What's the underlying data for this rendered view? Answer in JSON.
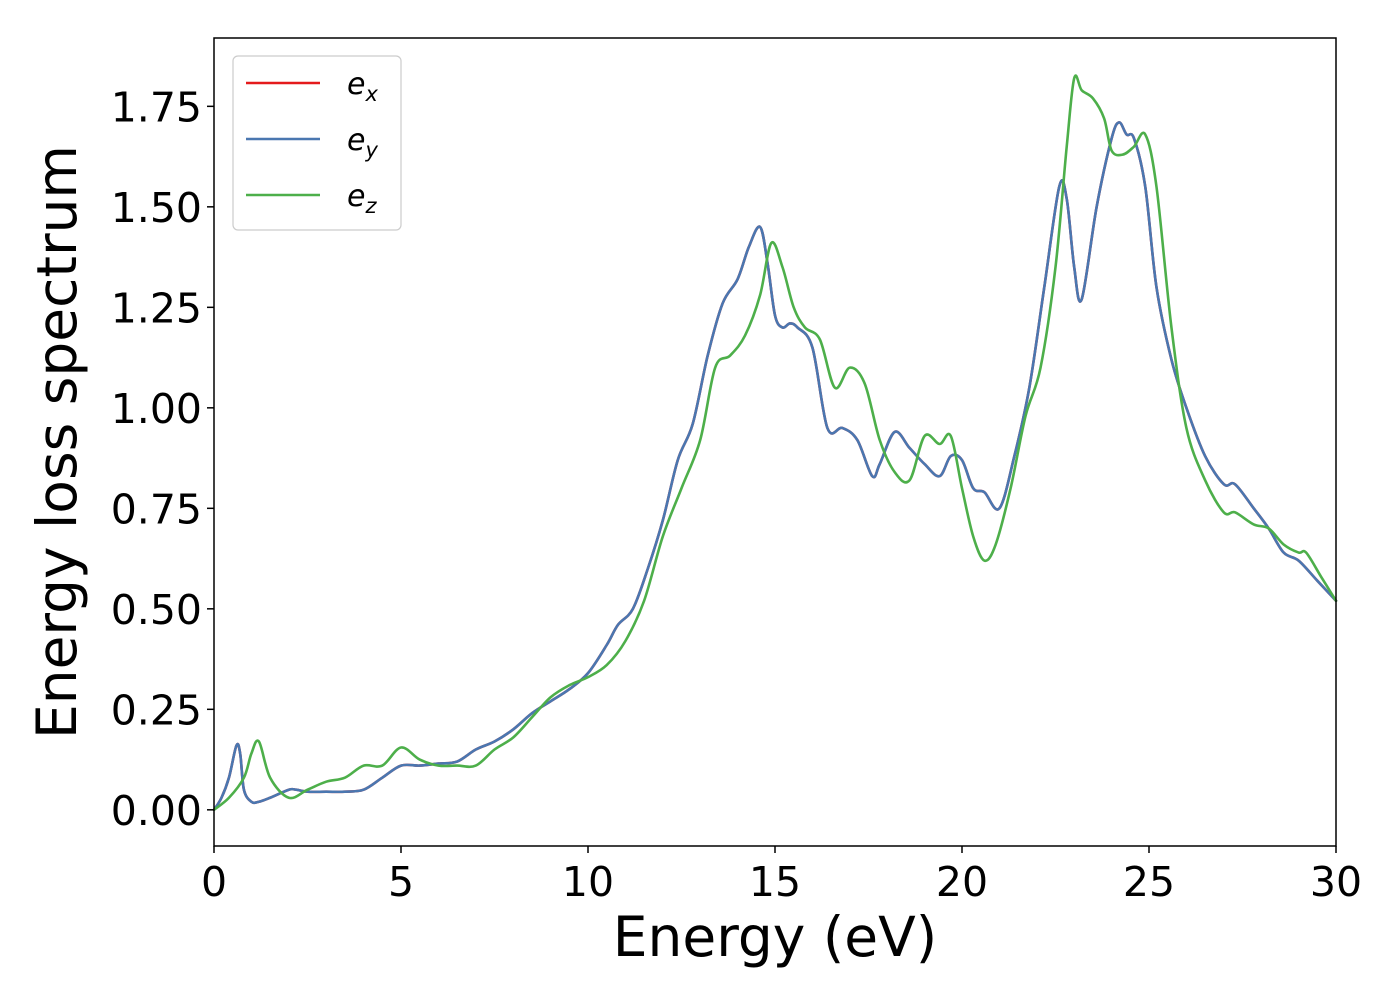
{
  "chart_data": {
    "type": "line",
    "title": "",
    "xlabel": "Energy (eV)",
    "ylabel": "Energy loss spectrum",
    "xlim": [
      0,
      30
    ],
    "ylim": [
      -0.09,
      1.92
    ],
    "xticks": [
      0,
      5,
      10,
      15,
      20,
      25,
      30
    ],
    "xtick_labels": [
      "0",
      "5",
      "10",
      "15",
      "20",
      "25",
      "30"
    ],
    "yticks": [
      0.0,
      0.25,
      0.5,
      0.75,
      1.0,
      1.25,
      1.5,
      1.75
    ],
    "ytick_labels": [
      "0.00",
      "0.25",
      "0.50",
      "0.75",
      "1.00",
      "1.25",
      "1.50",
      "1.75"
    ],
    "grid": false,
    "legend": {
      "position": "upper-left",
      "entries": [
        {
          "base": "e",
          "sub": "x",
          "color": "#e41a1c"
        },
        {
          "base": "e",
          "sub": "y",
          "color": "#4a77b0"
        },
        {
          "base": "e",
          "sub": "z",
          "color": "#4daf4a"
        }
      ]
    },
    "series": [
      {
        "name": "e_x",
        "color": "#e41a1c",
        "x": [
          0,
          0.2,
          0.4,
          0.6,
          0.7,
          0.8,
          1.0,
          1.2,
          1.5,
          2.0,
          2.2,
          2.5,
          3.0,
          3.5,
          4.0,
          4.5,
          5.0,
          5.5,
          6.0,
          6.5,
          7.0,
          7.5,
          8.0,
          8.5,
          9.0,
          9.5,
          10.0,
          10.5,
          10.8,
          11.2,
          11.6,
          12.0,
          12.4,
          12.8,
          13.2,
          13.6,
          14.0,
          14.3,
          14.6,
          14.8,
          15.0,
          15.2,
          15.4,
          15.6,
          16.0,
          16.4,
          16.8,
          17.2,
          17.6,
          17.8,
          18.2,
          18.6,
          19.0,
          19.4,
          19.7,
          20.0,
          20.3,
          20.6,
          21.0,
          21.4,
          21.8,
          22.2,
          22.6,
          22.8,
          23.0,
          23.2,
          23.6,
          24.0,
          24.2,
          24.4,
          24.6,
          24.9,
          25.2,
          25.6,
          26.0,
          26.5,
          27.0,
          27.3,
          27.8,
          28.2,
          28.6,
          29.0,
          29.5,
          30.0
        ],
        "y": [
          0.0,
          0.03,
          0.08,
          0.16,
          0.14,
          0.05,
          0.02,
          0.02,
          0.03,
          0.05,
          0.05,
          0.045,
          0.045,
          0.045,
          0.05,
          0.08,
          0.11,
          0.11,
          0.115,
          0.12,
          0.15,
          0.17,
          0.2,
          0.24,
          0.27,
          0.3,
          0.34,
          0.41,
          0.46,
          0.5,
          0.6,
          0.72,
          0.87,
          0.96,
          1.13,
          1.26,
          1.32,
          1.4,
          1.45,
          1.36,
          1.23,
          1.2,
          1.21,
          1.2,
          1.15,
          0.95,
          0.95,
          0.92,
          0.83,
          0.86,
          0.94,
          0.9,
          0.86,
          0.83,
          0.88,
          0.87,
          0.8,
          0.79,
          0.75,
          0.88,
          1.05,
          1.3,
          1.55,
          1.52,
          1.35,
          1.27,
          1.5,
          1.67,
          1.71,
          1.68,
          1.67,
          1.55,
          1.3,
          1.12,
          1.0,
          0.88,
          0.81,
          0.81,
          0.75,
          0.7,
          0.64,
          0.62,
          0.57,
          0.52
        ]
      },
      {
        "name": "e_y",
        "color": "#4a77b0",
        "x": [
          0,
          0.2,
          0.4,
          0.6,
          0.7,
          0.8,
          1.0,
          1.2,
          1.5,
          2.0,
          2.2,
          2.5,
          3.0,
          3.5,
          4.0,
          4.5,
          5.0,
          5.5,
          6.0,
          6.5,
          7.0,
          7.5,
          8.0,
          8.5,
          9.0,
          9.5,
          10.0,
          10.5,
          10.8,
          11.2,
          11.6,
          12.0,
          12.4,
          12.8,
          13.2,
          13.6,
          14.0,
          14.3,
          14.6,
          14.8,
          15.0,
          15.2,
          15.4,
          15.6,
          16.0,
          16.4,
          16.8,
          17.2,
          17.6,
          17.8,
          18.2,
          18.6,
          19.0,
          19.4,
          19.7,
          20.0,
          20.3,
          20.6,
          21.0,
          21.4,
          21.8,
          22.2,
          22.6,
          22.8,
          23.0,
          23.2,
          23.6,
          24.0,
          24.2,
          24.4,
          24.6,
          24.9,
          25.2,
          25.6,
          26.0,
          26.5,
          27.0,
          27.3,
          27.8,
          28.2,
          28.6,
          29.0,
          29.5,
          30.0
        ],
        "y": [
          0.0,
          0.03,
          0.08,
          0.16,
          0.14,
          0.05,
          0.02,
          0.02,
          0.03,
          0.05,
          0.05,
          0.045,
          0.045,
          0.045,
          0.05,
          0.08,
          0.11,
          0.11,
          0.115,
          0.12,
          0.15,
          0.17,
          0.2,
          0.24,
          0.27,
          0.3,
          0.34,
          0.41,
          0.46,
          0.5,
          0.6,
          0.72,
          0.87,
          0.96,
          1.13,
          1.26,
          1.32,
          1.4,
          1.45,
          1.36,
          1.23,
          1.2,
          1.21,
          1.2,
          1.15,
          0.95,
          0.95,
          0.92,
          0.83,
          0.86,
          0.94,
          0.9,
          0.86,
          0.83,
          0.88,
          0.87,
          0.8,
          0.79,
          0.75,
          0.88,
          1.05,
          1.3,
          1.55,
          1.52,
          1.35,
          1.27,
          1.5,
          1.67,
          1.71,
          1.68,
          1.67,
          1.55,
          1.3,
          1.12,
          1.0,
          0.88,
          0.81,
          0.81,
          0.75,
          0.7,
          0.64,
          0.62,
          0.57,
          0.52
        ]
      },
      {
        "name": "e_z",
        "color": "#4daf4a",
        "x": [
          0,
          0.4,
          0.8,
          1.0,
          1.2,
          1.5,
          2.0,
          2.5,
          3.0,
          3.5,
          4.0,
          4.5,
          5.0,
          5.5,
          6.0,
          6.5,
          7.0,
          7.5,
          8.0,
          8.5,
          9.0,
          9.5,
          10.0,
          10.5,
          11.0,
          11.5,
          12.0,
          12.5,
          13.0,
          13.4,
          13.8,
          14.2,
          14.6,
          14.9,
          15.2,
          15.5,
          15.8,
          16.2,
          16.6,
          17.0,
          17.4,
          17.8,
          18.2,
          18.6,
          19.0,
          19.4,
          19.7,
          20.0,
          20.3,
          20.6,
          20.9,
          21.3,
          21.7,
          22.1,
          22.5,
          22.8,
          23.0,
          23.2,
          23.5,
          23.8,
          24.0,
          24.3,
          24.6,
          24.9,
          25.2,
          25.6,
          26.0,
          26.5,
          27.0,
          27.3,
          27.8,
          28.2,
          28.6,
          29.0,
          29.2,
          29.6,
          30.0
        ],
        "y": [
          0.0,
          0.03,
          0.08,
          0.14,
          0.17,
          0.08,
          0.03,
          0.05,
          0.07,
          0.08,
          0.11,
          0.11,
          0.155,
          0.125,
          0.11,
          0.11,
          0.11,
          0.15,
          0.18,
          0.23,
          0.28,
          0.31,
          0.33,
          0.36,
          0.42,
          0.52,
          0.68,
          0.8,
          0.92,
          1.1,
          1.13,
          1.18,
          1.28,
          1.41,
          1.35,
          1.25,
          1.2,
          1.17,
          1.05,
          1.1,
          1.06,
          0.92,
          0.84,
          0.82,
          0.93,
          0.91,
          0.93,
          0.8,
          0.68,
          0.62,
          0.66,
          0.8,
          0.98,
          1.1,
          1.35,
          1.65,
          1.82,
          1.79,
          1.77,
          1.72,
          1.64,
          1.63,
          1.65,
          1.68,
          1.55,
          1.2,
          0.95,
          0.82,
          0.74,
          0.74,
          0.71,
          0.7,
          0.66,
          0.64,
          0.64,
          0.58,
          0.52
        ]
      }
    ]
  }
}
